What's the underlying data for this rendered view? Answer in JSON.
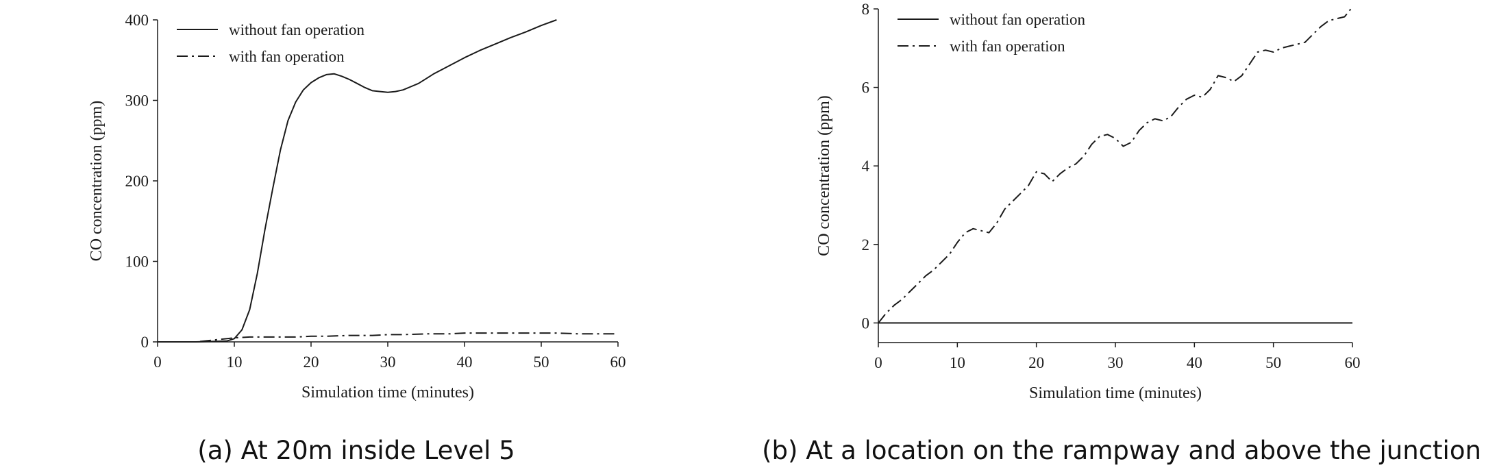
{
  "chart_data": [
    {
      "type": "line",
      "caption": "(a) At 20m inside Level 5",
      "xlabel": "Simulation time (minutes)",
      "ylabel": "CO concentration (ppm)",
      "xlim": [
        0,
        60
      ],
      "ylim": [
        0,
        400
      ],
      "x_ticks": [
        "0",
        "10",
        "20",
        "30",
        "40",
        "50",
        "60"
      ],
      "y_ticks": [
        "0",
        "100",
        "200",
        "300",
        "400"
      ],
      "grid": false,
      "legend_position": "top-left",
      "series": [
        {
          "name": "without fan operation",
          "style": "solid",
          "x": [
            0,
            5,
            9,
            10,
            11,
            12,
            13,
            14,
            15,
            16,
            17,
            18,
            19,
            20,
            21,
            22,
            23,
            24,
            25,
            26,
            27,
            28,
            29,
            30,
            31,
            32,
            33,
            34,
            35,
            36,
            37,
            38,
            39,
            40,
            42,
            44,
            46,
            48,
            50,
            52
          ],
          "y": [
            0,
            0,
            1,
            4,
            15,
            40,
            85,
            140,
            190,
            238,
            275,
            298,
            313,
            322,
            328,
            332,
            333,
            330,
            326,
            321,
            316,
            312,
            311,
            310,
            311,
            313,
            317,
            321,
            327,
            333,
            338,
            343,
            348,
            353,
            362,
            370,
            378,
            385,
            393,
            400
          ]
        },
        {
          "name": "with fan operation",
          "style": "dash-dot",
          "x": [
            0,
            5,
            8,
            10,
            12,
            15,
            18,
            20,
            22,
            25,
            28,
            30,
            32,
            35,
            38,
            40,
            42,
            45,
            48,
            50,
            52,
            55,
            58,
            60
          ],
          "y": [
            0,
            0,
            3,
            5,
            6,
            6,
            6,
            7,
            7,
            8,
            8,
            9,
            9,
            10,
            10,
            11,
            11,
            11,
            11,
            11,
            11,
            10,
            10,
            10
          ]
        }
      ]
    },
    {
      "type": "line",
      "caption": "(b) At a location on the rampway and above the junction",
      "xlabel": "Simulation time (minutes)",
      "ylabel": "CO concentration (ppm)",
      "xlim": [
        0,
        60
      ],
      "ylim": [
        -0.5,
        8
      ],
      "x_ticks": [
        "0",
        "10",
        "20",
        "30",
        "40",
        "50",
        "60"
      ],
      "y_ticks": [
        "0",
        "2",
        "4",
        "6",
        "8"
      ],
      "grid": false,
      "legend_position": "top-left",
      "series": [
        {
          "name": "without fan operation",
          "style": "solid",
          "x": [
            0,
            60
          ],
          "y": [
            0,
            0
          ]
        },
        {
          "name": "with fan operation",
          "style": "dash-dot",
          "x": [
            0,
            1,
            2,
            3,
            4,
            5,
            6,
            7,
            8,
            9,
            10,
            11,
            12,
            13,
            14,
            15,
            16,
            17,
            18,
            19,
            20,
            21,
            22,
            23,
            24,
            25,
            26,
            27,
            28,
            29,
            30,
            31,
            32,
            33,
            34,
            35,
            36,
            37,
            38,
            39,
            40,
            41,
            42,
            43,
            44,
            45,
            46,
            47,
            48,
            49,
            50,
            51,
            52,
            53,
            54,
            55,
            56,
            57,
            58,
            59,
            60
          ],
          "y": [
            0,
            0.25,
            0.45,
            0.6,
            0.8,
            1.0,
            1.2,
            1.35,
            1.55,
            1.75,
            2.05,
            2.3,
            2.4,
            2.35,
            2.3,
            2.55,
            2.9,
            3.1,
            3.3,
            3.5,
            3.85,
            3.8,
            3.6,
            3.8,
            3.95,
            4.05,
            4.25,
            4.55,
            4.75,
            4.8,
            4.7,
            4.5,
            4.6,
            4.9,
            5.1,
            5.2,
            5.15,
            5.25,
            5.5,
            5.7,
            5.8,
            5.75,
            5.95,
            6.3,
            6.25,
            6.15,
            6.3,
            6.6,
            6.9,
            6.95,
            6.9,
            7.0,
            7.05,
            7.1,
            7.15,
            7.35,
            7.55,
            7.7,
            7.75,
            7.8,
            8.05
          ]
        }
      ]
    }
  ]
}
